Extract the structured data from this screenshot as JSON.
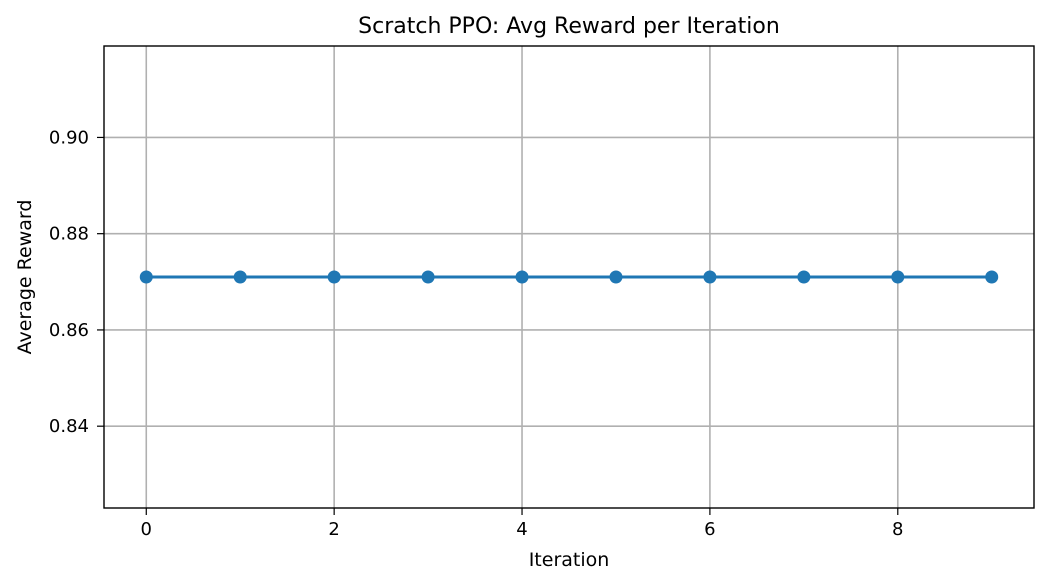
{
  "chart_data": {
    "type": "line",
    "title": "Scratch PPO: Avg Reward per Iteration",
    "xlabel": "Iteration",
    "ylabel": "Average Reward",
    "x": [
      0,
      1,
      2,
      3,
      4,
      5,
      6,
      7,
      8,
      9
    ],
    "series": [
      {
        "values": [
          0.871,
          0.871,
          0.871,
          0.871,
          0.871,
          0.871,
          0.871,
          0.871,
          0.871,
          0.871
        ],
        "color": "#1f77b4",
        "marker": "circle"
      }
    ],
    "xlim": [
      -0.45,
      9.45
    ],
    "ylim": [
      0.823,
      0.919
    ],
    "xticks": [
      0,
      2,
      4,
      6,
      8
    ],
    "xtick_labels": [
      "0",
      "2",
      "4",
      "6",
      "8"
    ],
    "yticks": [
      0.84,
      0.86,
      0.88,
      0.9
    ],
    "ytick_labels": [
      "0.84",
      "0.86",
      "0.88",
      "0.90"
    ],
    "grid": true,
    "legend": "none"
  }
}
